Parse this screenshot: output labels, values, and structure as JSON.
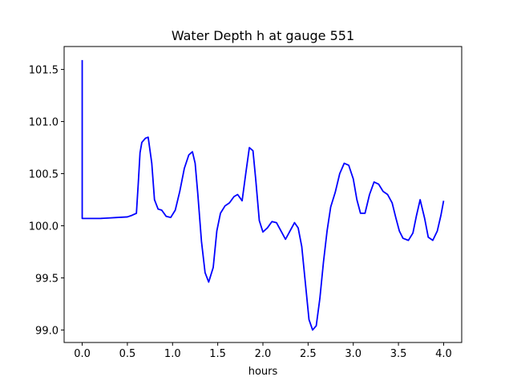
{
  "chart_data": {
    "type": "line",
    "title": "Water Depth h at gauge 551",
    "xlabel": "hours",
    "ylabel": "",
    "xlim": [
      -0.2,
      4.2
    ],
    "ylim": [
      98.88,
      101.72
    ],
    "grid": false,
    "legend": "none",
    "xticks": [
      0.0,
      0.5,
      1.0,
      1.5,
      2.0,
      2.5,
      3.0,
      3.5,
      4.0
    ],
    "xtick_labels": [
      "0.0",
      "0.5",
      "1.0",
      "1.5",
      "2.0",
      "2.5",
      "3.0",
      "3.5",
      "4.0"
    ],
    "yticks": [
      99.0,
      99.5,
      100.0,
      100.5,
      101.0,
      101.5
    ],
    "ytick_labels": [
      "99.0",
      "99.5",
      "100.0",
      "100.5",
      "101.0",
      "101.5"
    ],
    "series": [
      {
        "color": "#0000ff",
        "x": [
          0.0,
          0.0,
          0.0,
          0.1,
          0.2,
          0.3,
          0.4,
          0.5,
          0.55,
          0.6,
          0.62,
          0.64,
          0.66,
          0.7,
          0.73,
          0.77,
          0.8,
          0.84,
          0.88,
          0.93,
          0.98,
          1.03,
          1.08,
          1.13,
          1.18,
          1.22,
          1.25,
          1.28,
          1.32,
          1.36,
          1.4,
          1.45,
          1.49,
          1.53,
          1.58,
          1.63,
          1.68,
          1.72,
          1.77,
          1.81,
          1.85,
          1.89,
          1.92,
          1.96,
          2.0,
          2.05,
          2.1,
          2.15,
          2.2,
          2.25,
          2.3,
          2.35,
          2.39,
          2.43,
          2.47,
          2.51,
          2.55,
          2.59,
          2.63,
          2.67,
          2.71,
          2.75,
          2.8,
          2.85,
          2.9,
          2.95,
          3.0,
          3.04,
          3.08,
          3.13,
          3.18,
          3.23,
          3.28,
          3.33,
          3.38,
          3.43,
          3.47,
          3.51,
          3.55,
          3.61,
          3.66,
          3.7,
          3.74,
          3.79,
          3.83,
          3.88,
          3.93,
          3.97,
          4.0
        ],
        "y": [
          101.59,
          101.2,
          100.07,
          100.07,
          100.07,
          100.075,
          100.08,
          100.085,
          100.1,
          100.12,
          100.4,
          100.7,
          100.8,
          100.84,
          100.85,
          100.6,
          100.25,
          100.16,
          100.15,
          100.09,
          100.08,
          100.15,
          100.33,
          100.55,
          100.68,
          100.71,
          100.6,
          100.3,
          99.85,
          99.55,
          99.46,
          99.6,
          99.95,
          100.12,
          100.19,
          100.22,
          100.28,
          100.3,
          100.24,
          100.5,
          100.75,
          100.72,
          100.45,
          100.05,
          99.94,
          99.98,
          100.04,
          100.03,
          99.95,
          99.87,
          99.95,
          100.03,
          99.98,
          99.8,
          99.45,
          99.1,
          99.0,
          99.04,
          99.3,
          99.65,
          99.95,
          100.18,
          100.32,
          100.5,
          100.6,
          100.58,
          100.45,
          100.25,
          100.12,
          100.12,
          100.3,
          100.42,
          100.4,
          100.33,
          100.3,
          100.22,
          100.08,
          99.95,
          99.88,
          99.86,
          99.93,
          100.1,
          100.25,
          100.07,
          99.89,
          99.86,
          99.95,
          100.1,
          100.24
        ]
      }
    ]
  }
}
